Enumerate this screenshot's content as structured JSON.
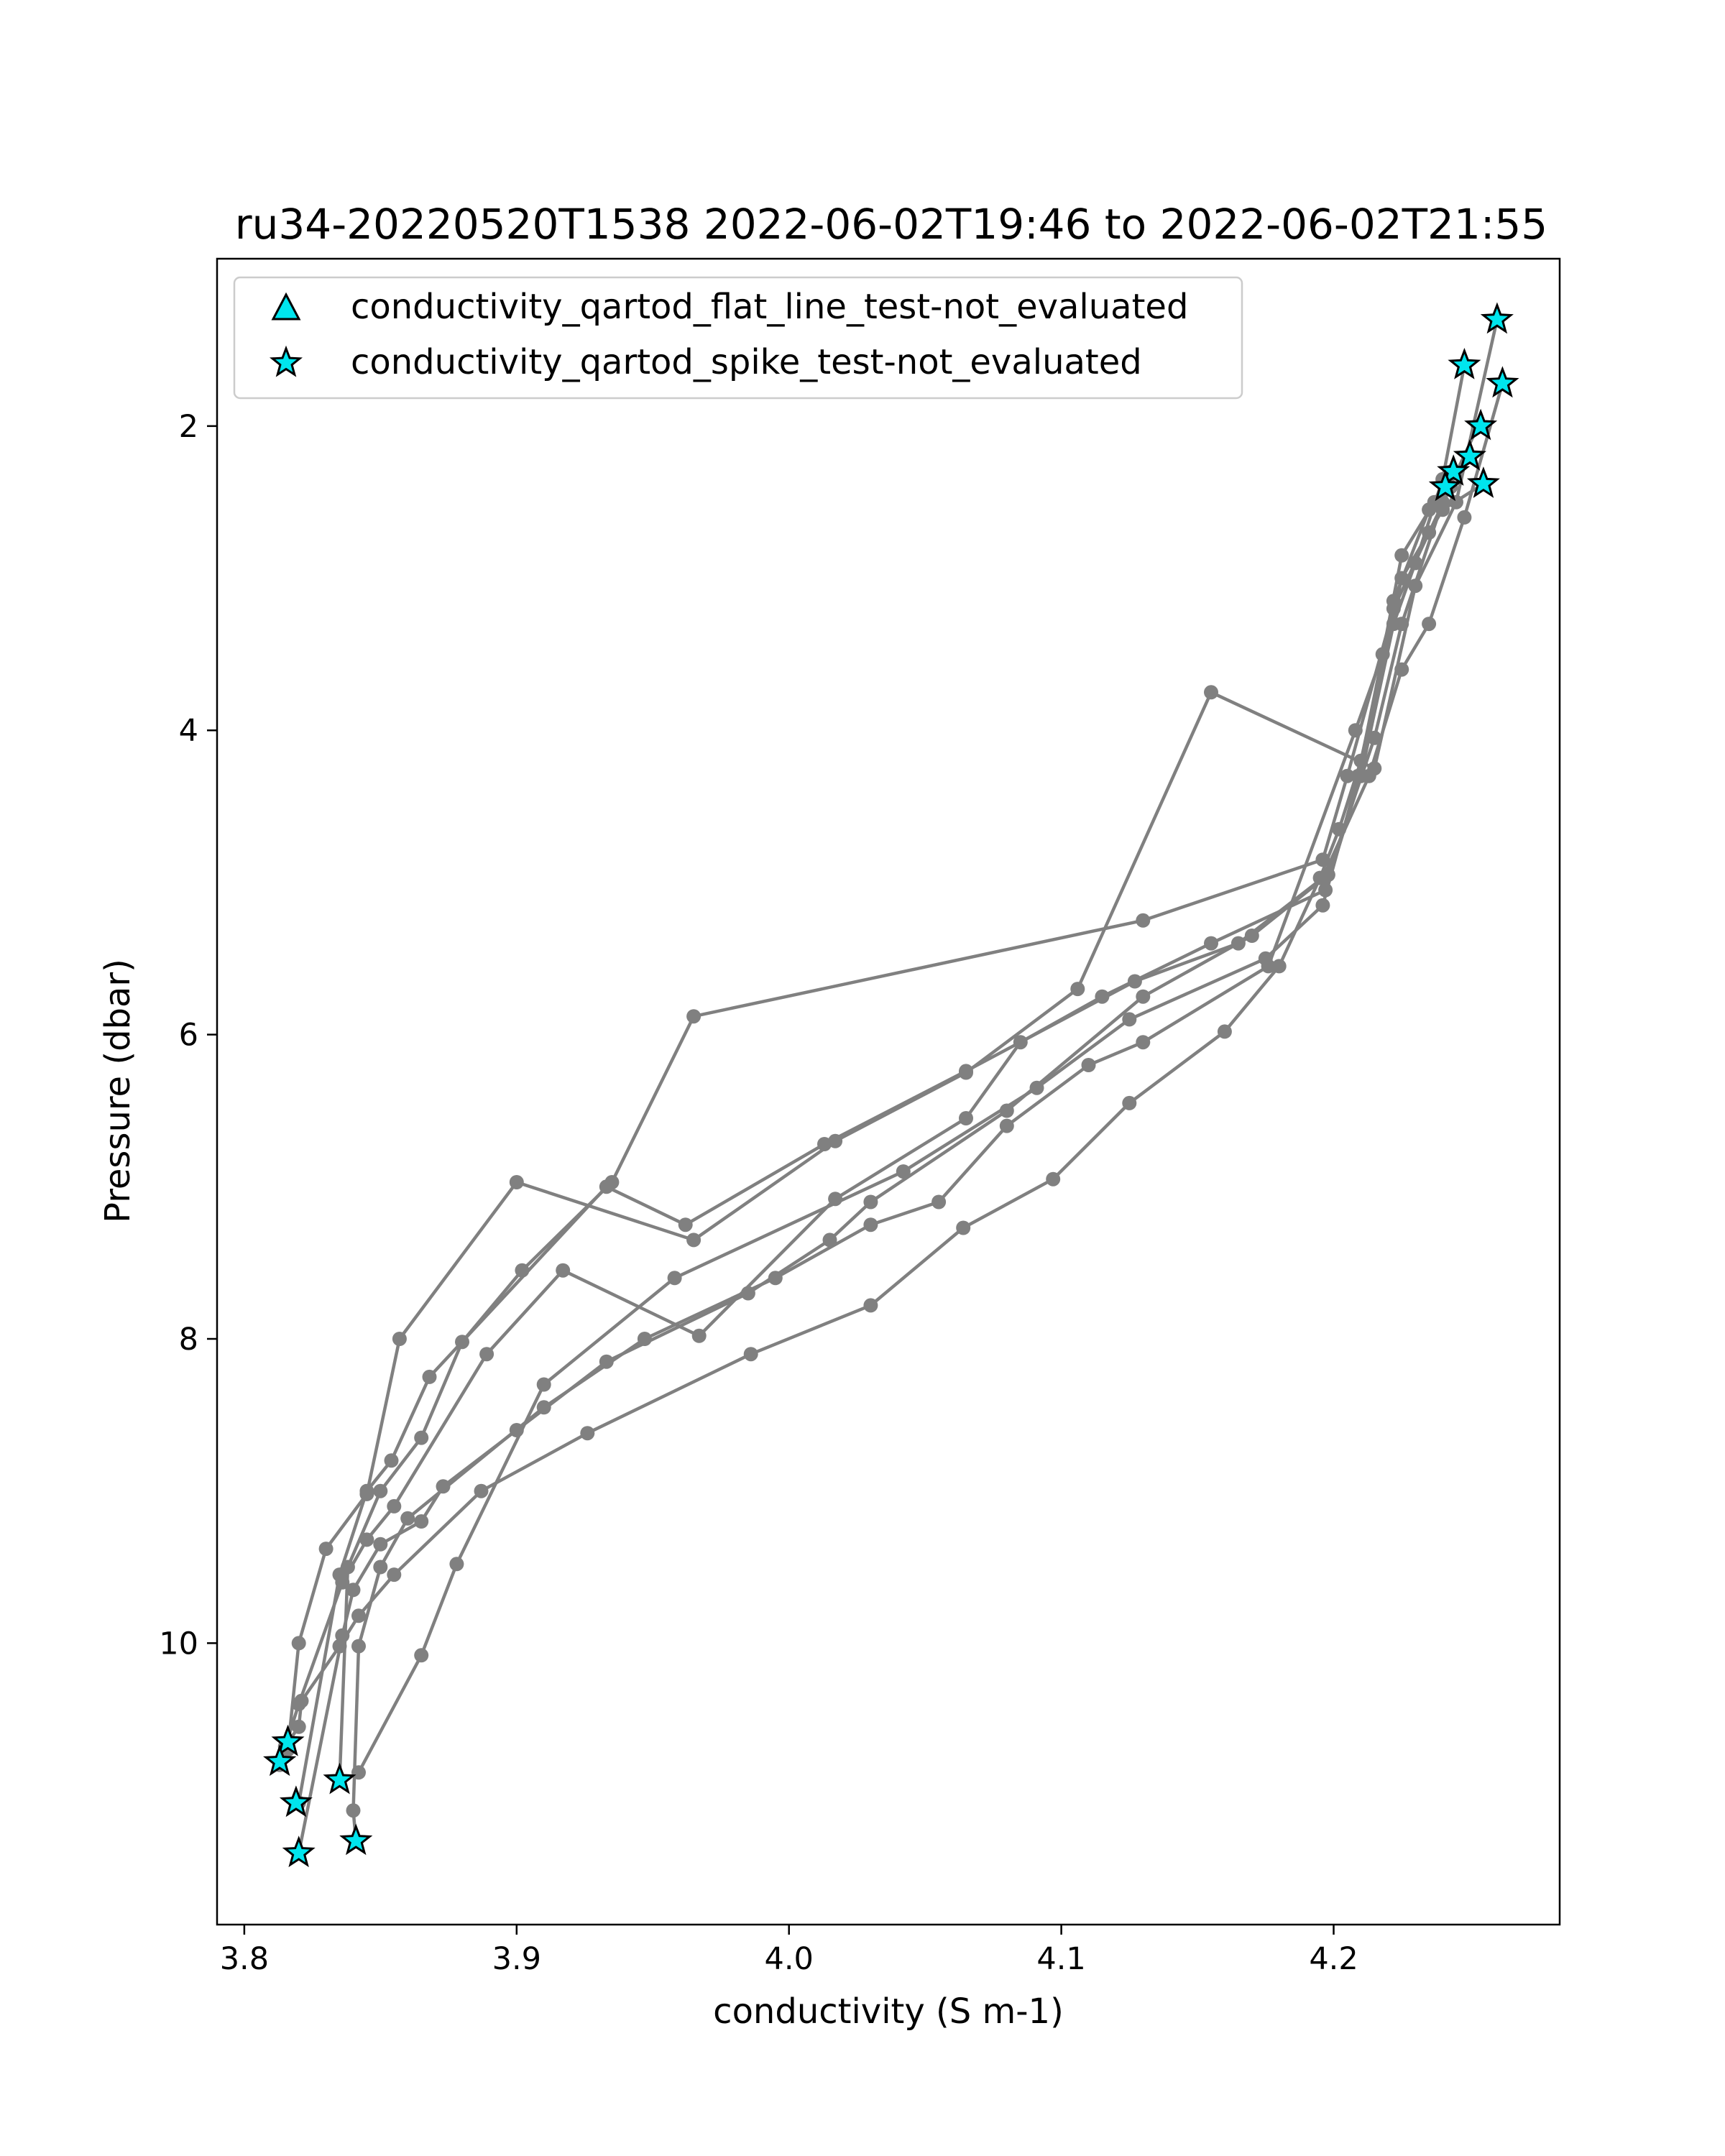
{
  "chart_data": {
    "type": "scatter",
    "title": "ru34-20220520T1538 2022-06-02T19:46 to 2022-06-02T21:55",
    "xlabel": "conductivity (S m-1)",
    "ylabel": "Pressure (dbar)",
    "xlim": [
      3.79,
      4.283
    ],
    "ylim": [
      11.85,
      0.9
    ],
    "y_inverted": true,
    "grid": false,
    "xticks": [
      "3.8",
      "3.9",
      "4.0",
      "4.1",
      "4.2"
    ],
    "yticks": [
      "2",
      "4",
      "6",
      "8",
      "10"
    ],
    "line_color": "#808080",
    "marker_color": "#00e5ee",
    "legend": {
      "placement": "upper-left",
      "entries": [
        {
          "label": "conductivity_qartod_flat_line_test-not_evaluated",
          "marker": "triangle"
        },
        {
          "label": "conductivity_qartod_spike_test-not_evaluated",
          "marker": "star"
        }
      ]
    },
    "series": [
      {
        "x": [
          4.255,
          4.24,
          4.225,
          4.21,
          4.202,
          4.195,
          4.18,
          4.16,
          4.125,
          4.097,
          4.064,
          4.03,
          3.986,
          3.926,
          3.887,
          3.855,
          3.842,
          3.835,
          3.821,
          3.82,
          3.815
        ],
        "y": [
          2.38,
          2.55,
          3.0,
          4.2,
          4.65,
          4.97,
          5.55,
          5.98,
          6.45,
          6.95,
          7.27,
          7.78,
          8.1,
          8.62,
          9.0,
          9.55,
          9.82,
          10.02,
          10.38,
          10.55,
          10.68
        ]
      },
      {
        "x": [
          4.253,
          4.24,
          4.225,
          4.215,
          4.198,
          4.17,
          4.13,
          4.08,
          4.03,
          4.015,
          3.985,
          3.933,
          3.9,
          3.873,
          3.865,
          3.85,
          3.84,
          3.836,
          3.82
        ],
        "y": [
          2.0,
          2.5,
          3.3,
          4.05,
          4.95,
          5.35,
          5.75,
          6.5,
          7.1,
          7.35,
          7.7,
          8.15,
          8.6,
          8.97,
          9.2,
          9.35,
          9.65,
          9.95,
          11.38
        ]
      },
      {
        "x": [
          4.262,
          4.248,
          4.235,
          4.225,
          4.213,
          4.196,
          4.165,
          4.127,
          4.065,
          4.013,
          3.962,
          3.933,
          3.868,
          3.854,
          3.845,
          3.835,
          3.82
        ],
        "y": [
          1.72,
          2.6,
          3.3,
          3.6,
          4.3,
          4.97,
          5.4,
          5.65,
          6.24,
          6.72,
          7.25,
          7.0,
          8.25,
          8.8,
          9.0,
          9.55,
          11.05
        ]
      },
      {
        "x": [
          4.26,
          4.245,
          4.23,
          4.215,
          4.155,
          4.106,
          4.065,
          4.017,
          3.965,
          3.9,
          3.857,
          3.845,
          3.83,
          3.82,
          3.816
        ],
        "y": [
          1.3,
          2.5,
          3.05,
          4.25,
          3.75,
          5.7,
          6.25,
          6.7,
          7.35,
          6.97,
          8.0,
          9.02,
          9.38,
          10.0,
          10.7
        ]
      },
      {
        "x": [
          4.248,
          4.24,
          4.23,
          4.222,
          4.21,
          4.197,
          4.155,
          4.115,
          4.085,
          4.065,
          4.017,
          3.967,
          3.917,
          3.889,
          3.855,
          3.845,
          3.836,
          3.82,
          3.813
        ],
        "y": [
          1.6,
          2.35,
          2.9,
          3.3,
          4.3,
          5.05,
          5.4,
          5.75,
          6.05,
          6.55,
          7.08,
          7.98,
          7.55,
          8.1,
          9.1,
          9.32,
          9.6,
          10.4,
          10.8
        ]
      },
      {
        "x": [
          4.243,
          4.235,
          4.222,
          4.205,
          4.196,
          4.13,
          3.965,
          3.935,
          3.902,
          3.88,
          3.865,
          3.85,
          3.838,
          3.835
        ],
        "y": [
          2.4,
          2.7,
          3.2,
          4.3,
          4.85,
          5.25,
          5.88,
          6.97,
          7.55,
          8.02,
          8.65,
          9.0,
          9.5,
          10.9
        ]
      },
      {
        "x": [
          4.25,
          4.237,
          4.225,
          4.218,
          4.208,
          4.176,
          4.13,
          4.11,
          4.08,
          4.055,
          4.03,
          3.995,
          3.947,
          3.91,
          3.86,
          3.85,
          3.842,
          3.84,
          3.841
        ],
        "y": [
          2.2,
          2.5,
          2.85,
          3.5,
          4.0,
          5.55,
          6.05,
          6.2,
          6.6,
          7.1,
          7.25,
          7.6,
          8.0,
          8.45,
          9.18,
          9.5,
          10.02,
          11.1,
          11.3
        ]
      },
      {
        "x": [
          4.243,
          4.235,
          4.222,
          4.209,
          4.196,
          4.175,
          4.125,
          4.091,
          4.042,
          3.958,
          3.91,
          3.878,
          3.865,
          3.842
        ],
        "y": [
          2.3,
          2.55,
          3.15,
          4.3,
          5.15,
          5.5,
          5.9,
          6.35,
          6.9,
          7.6,
          8.3,
          9.48,
          10.08,
          10.85
        ]
      }
    ],
    "spike_test_markers": {
      "x": [
        4.26,
        4.248,
        4.262,
        4.254,
        4.25,
        4.244,
        4.241,
        4.255,
        3.816,
        3.813,
        3.819,
        3.82,
        3.835,
        3.841
      ],
      "y": [
        1.3,
        1.6,
        1.72,
        2.0,
        2.2,
        2.3,
        2.4,
        2.38,
        10.65,
        10.78,
        11.05,
        11.38,
        10.9,
        11.3
      ]
    }
  }
}
